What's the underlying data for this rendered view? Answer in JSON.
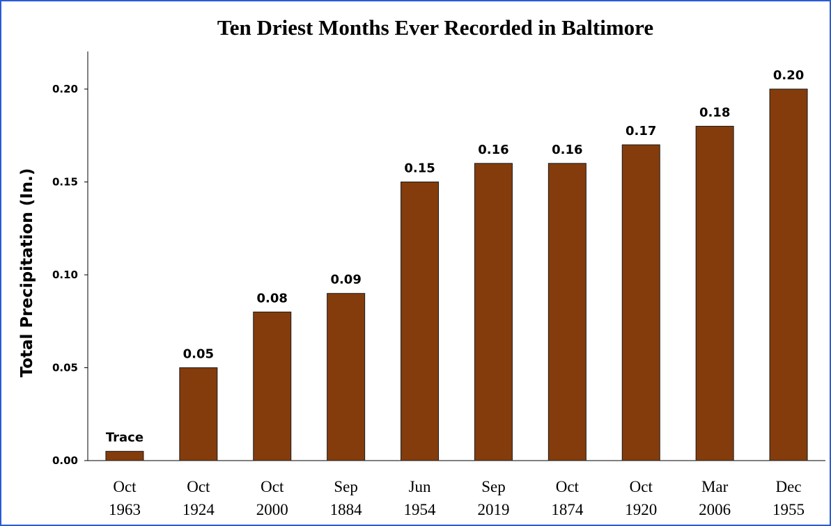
{
  "chart_data": {
    "type": "bar",
    "title": "Ten Driest Months Ever Recorded in Baltimore",
    "xlabel": "",
    "ylabel": "Total Precipitation (In.)",
    "ylim": [
      0,
      0.22
    ],
    "yticks": [
      "0.00",
      "0.05",
      "0.10",
      "0.15",
      "0.20"
    ],
    "ytick_values": [
      0,
      0.05,
      0.1,
      0.15,
      0.2
    ],
    "grid": false,
    "legend": "none",
    "bar_color": "#843c0c",
    "categories": [
      [
        "Oct",
        "1963"
      ],
      [
        "Oct",
        "1924"
      ],
      [
        "Oct",
        "2000"
      ],
      [
        "Sep",
        "1884"
      ],
      [
        "Jun",
        "1954"
      ],
      [
        "Sep",
        "2019"
      ],
      [
        "Oct",
        "1874"
      ],
      [
        "Oct",
        "1920"
      ],
      [
        "Mar",
        "2006"
      ],
      [
        "Dec",
        "1955"
      ]
    ],
    "values": [
      0.005,
      0.05,
      0.08,
      0.09,
      0.15,
      0.16,
      0.16,
      0.17,
      0.18,
      0.2
    ],
    "data_labels": [
      "Trace",
      "0.05",
      "0.08",
      "0.09",
      "0.15",
      "0.16",
      "0.16",
      "0.17",
      "0.18",
      "0.20"
    ]
  },
  "colors": {
    "frame_border": "#2a5bd7",
    "bar_fill": "#843c0c",
    "bar_stroke": "#1a1a1a",
    "axis": "#000000"
  }
}
